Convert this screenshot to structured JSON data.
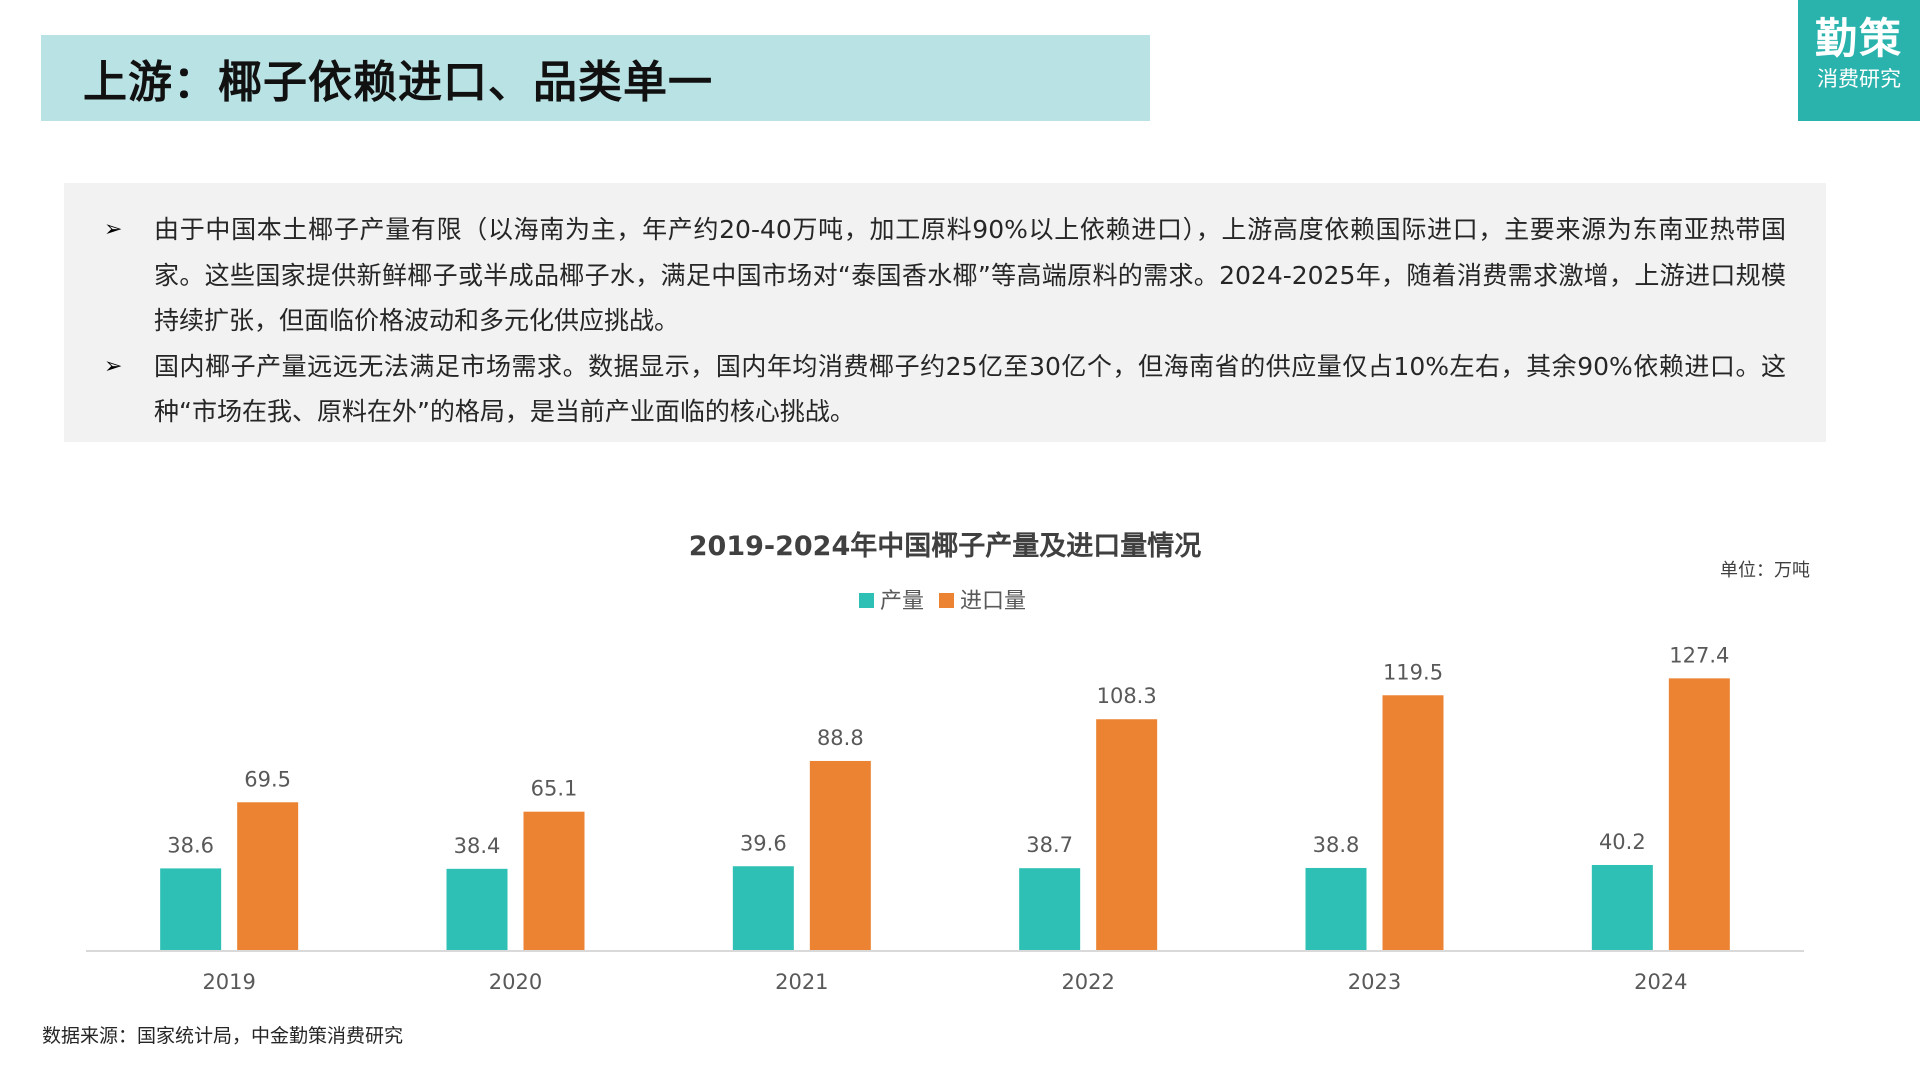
{
  "header": {
    "title": "上游：椰子依赖进口、品类单一",
    "logo_main": "勤策",
    "logo_sub": "消费研究"
  },
  "summary": {
    "bullets": [
      "由于中国本土椰子产量有限（以海南为主，年产约20-40万吨，加工原料90%以上依赖进口），上游高度依赖国际进口，主要来源为东南亚热带国家。这些国家提供新鲜椰子或半成品椰子水，满足中国市场对“泰国香水椰”等高端原料的需求。2024-2025年，随着消费需求激增，上游进口规模持续扩张，但面临价格波动和多元化供应挑战。",
      "国内椰子产量远远无法满足市场需求。数据显示，国内年均消费椰子约25亿至30亿个，但海南省的供应量仅占10%左右，其余90%依赖进口。这种“市场在我、原料在外”的格局，是当前产业面临的核心挑战。"
    ]
  },
  "chart_data": {
    "type": "bar",
    "title": "2019-2024年中国椰子产量及进口量情况",
    "unit_label": "单位：万吨",
    "categories": [
      "2019",
      "2020",
      "2021",
      "2022",
      "2023",
      "2024"
    ],
    "series": [
      {
        "name": "产量",
        "color": "#2ec0b4",
        "values": [
          38.6,
          38.4,
          39.6,
          38.7,
          38.8,
          40.2
        ]
      },
      {
        "name": "进口量",
        "color": "#ec8332",
        "values": [
          69.5,
          65.1,
          88.8,
          108.3,
          119.5,
          127.4
        ]
      }
    ],
    "ylim": [
      0,
      150
    ],
    "legend_position": "top-center",
    "grid": false,
    "data_labels": true
  },
  "footnote": "数据来源：国家统计局，中金勤策消费研究"
}
